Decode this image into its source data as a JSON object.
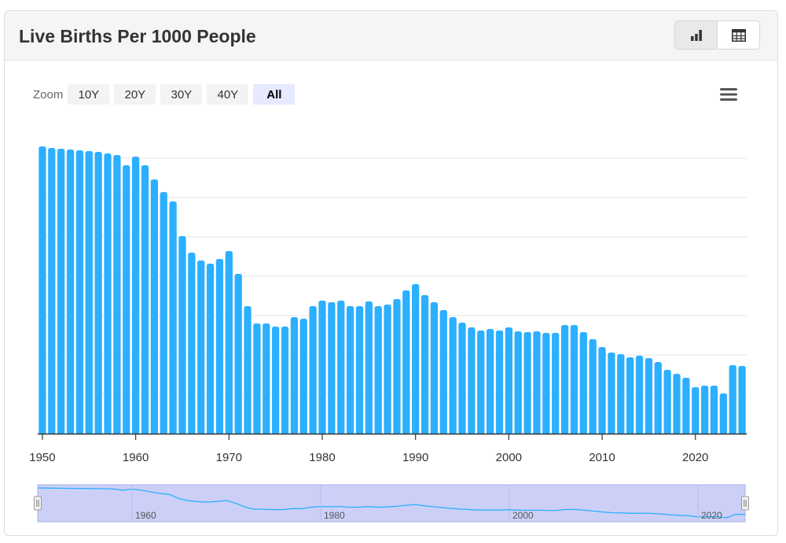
{
  "title": "Live Births Per 1000 People",
  "icons": {
    "chart_view": "bar-chart-icon",
    "table_view": "table-icon",
    "menu": "hamburger-menu-icon"
  },
  "zoom": {
    "label": "Zoom",
    "options": [
      "10Y",
      "20Y",
      "30Y",
      "40Y",
      "All"
    ],
    "selected": "All"
  },
  "colors": {
    "bar": "#2caffe",
    "navigator_fill": "#ccd0f7",
    "navigator_line": "#2caffe"
  },
  "chart_data": {
    "type": "bar",
    "title": "Live Births Per 1000 People",
    "x": [
      1950,
      1951,
      1952,
      1953,
      1954,
      1955,
      1956,
      1957,
      1958,
      1959,
      1960,
      1961,
      1962,
      1963,
      1964,
      1965,
      1966,
      1967,
      1968,
      1969,
      1970,
      1971,
      1972,
      1973,
      1974,
      1975,
      1976,
      1977,
      1978,
      1979,
      1980,
      1981,
      1982,
      1983,
      1984,
      1985,
      1986,
      1987,
      1988,
      1989,
      1990,
      1991,
      1992,
      1993,
      1994,
      1995,
      1996,
      1997,
      1998,
      1999,
      2000,
      2001,
      2002,
      2003,
      2004,
      2005,
      2006,
      2007,
      2008,
      2009,
      2010,
      2011,
      2012,
      2013,
      2014,
      2015,
      2016,
      2017,
      2018,
      2019,
      2020,
      2021,
      2022,
      2023,
      2024,
      2025
    ],
    "values": [
      36.5,
      36.3,
      36.2,
      36.1,
      36.0,
      35.9,
      35.8,
      35.6,
      35.4,
      34.1,
      35.2,
      34.1,
      32.3,
      30.7,
      29.5,
      25.1,
      23.0,
      22.0,
      21.6,
      22.2,
      23.2,
      20.3,
      16.2,
      14.0,
      14.0,
      13.6,
      13.6,
      14.8,
      14.6,
      16.2,
      16.9,
      16.7,
      16.9,
      16.2,
      16.2,
      16.8,
      16.2,
      16.4,
      17.1,
      18.2,
      19.0,
      17.6,
      16.7,
      15.7,
      14.8,
      14.1,
      13.5,
      13.1,
      13.3,
      13.1,
      13.5,
      13.0,
      12.9,
      13.0,
      12.8,
      12.8,
      13.8,
      13.8,
      12.9,
      12.0,
      11.0,
      10.3,
      10.1,
      9.7,
      9.9,
      9.6,
      9.1,
      8.1,
      7.6,
      7.1,
      5.9,
      6.1,
      6.1,
      5.1,
      8.7,
      8.6
    ],
    "x_ticks": [
      1950,
      1960,
      1970,
      1980,
      1990,
      2000,
      2010,
      2020
    ],
    "navigator_ticks": [
      1960,
      1980,
      2000,
      2020
    ],
    "xlim": [
      1950,
      2025
    ],
    "grid": true
  }
}
